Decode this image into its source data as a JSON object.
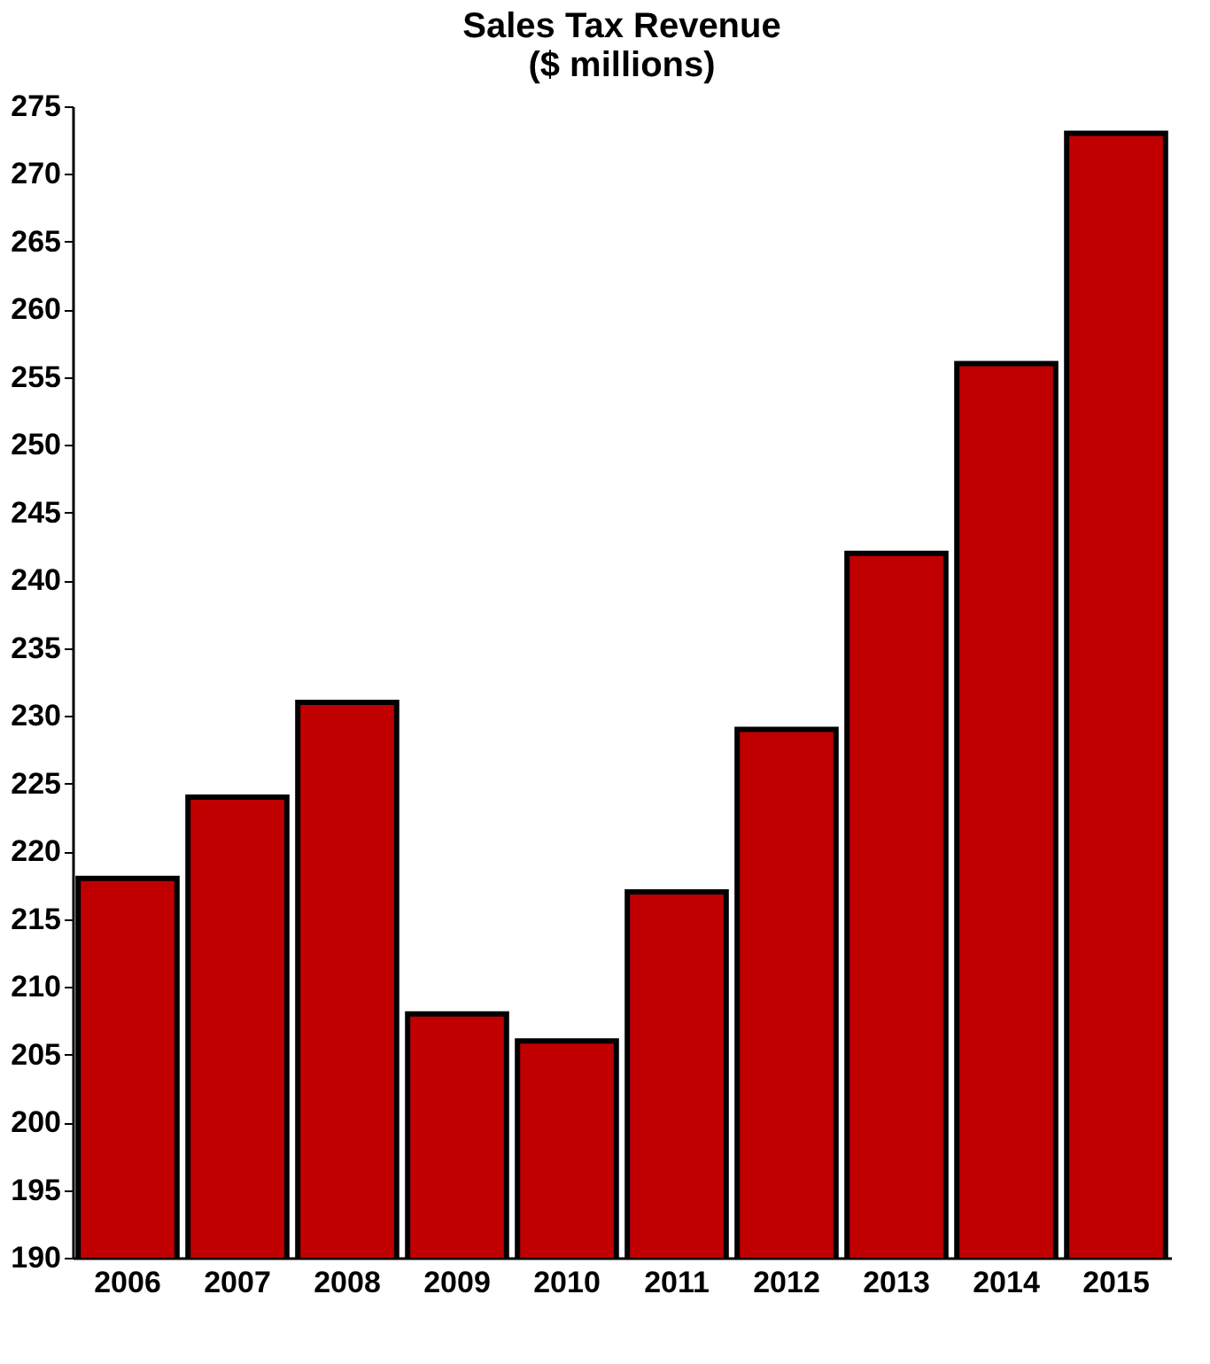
{
  "chart_data": {
    "type": "bar",
    "title": "Sales Tax Revenue\n($ millions)",
    "categories": [
      "2006",
      "2007",
      "2008",
      "2009",
      "2010",
      "2011",
      "2012",
      "2013",
      "2014",
      "2015"
    ],
    "values": [
      218,
      224,
      231,
      208,
      206,
      217,
      229,
      242,
      256,
      273
    ],
    "color": "#c00000",
    "ylim": [
      190,
      275
    ],
    "yticks": [
      190,
      195,
      200,
      205,
      210,
      215,
      220,
      225,
      230,
      235,
      240,
      245,
      250,
      255,
      260,
      265,
      270,
      275
    ]
  }
}
